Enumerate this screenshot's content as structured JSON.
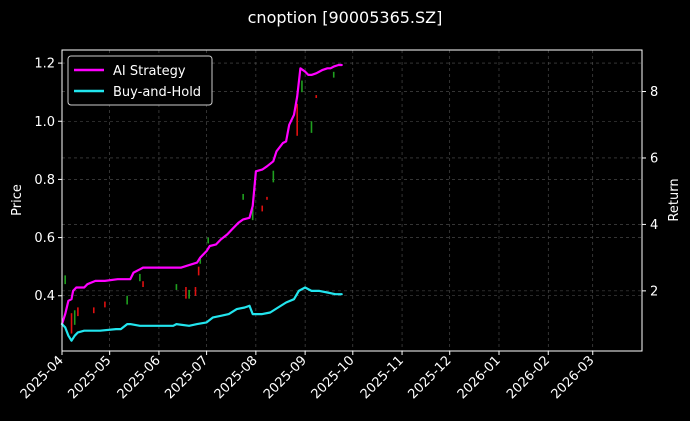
{
  "chart_data": {
    "type": "line",
    "title": "cnoption [90005365.SZ]",
    "ylabel_left": "Price",
    "ylabel_right": "Return",
    "ylim_left": [
      0.21,
      1.245
    ],
    "ylim_right": [
      0.19,
      9.25
    ],
    "yticks_left": [
      "0.4",
      "0.6",
      "0.8",
      "1.0",
      "1.2"
    ],
    "yticks_right": [
      "2",
      "4",
      "6",
      "8"
    ],
    "xlim": [
      "2025-04-01",
      "2026-04-01"
    ],
    "xticks": [
      "2025-04",
      "2025-05",
      "2025-06",
      "2025-07",
      "2025-08",
      "2025-09",
      "2025-10",
      "2025-11",
      "2025-12",
      "2026-01",
      "2026-02",
      "2026-03"
    ],
    "grid": true,
    "legend": "upper-left",
    "colors": {
      "ai": "#ff00ff",
      "bh": "#22e5ee",
      "up": "#1fa01f",
      "down": "#e01010",
      "grid": "#555555",
      "axis": "#ffffff"
    },
    "series": [
      {
        "name": "AI Strategy",
        "axis": "right",
        "x": [
          "2025-04-01",
          "2025-04-03",
          "2025-04-05",
          "2025-04-07",
          "2025-04-08",
          "2025-04-10",
          "2025-04-15",
          "2025-04-17",
          "2025-04-22",
          "2025-04-28",
          "2025-05-06",
          "2025-05-14",
          "2025-05-16",
          "2025-05-20",
          "2025-05-22",
          "2025-05-27",
          "2025-06-05",
          "2025-06-15",
          "2025-06-25",
          "2025-06-27",
          "2025-07-01",
          "2025-07-03",
          "2025-07-07",
          "2025-07-10",
          "2025-07-14",
          "2025-07-17",
          "2025-07-21",
          "2025-07-24",
          "2025-07-28",
          "2025-07-30",
          "2025-08-01",
          "2025-08-05",
          "2025-08-08",
          "2025-08-12",
          "2025-08-14",
          "2025-08-18",
          "2025-08-20",
          "2025-08-22",
          "2025-08-25",
          "2025-08-27",
          "2025-08-29",
          "2025-09-01",
          "2025-09-03",
          "2025-09-05",
          "2025-09-08",
          "2025-09-10",
          "2025-09-12",
          "2025-09-15",
          "2025-09-17",
          "2025-09-19",
          "2025-09-22",
          "2025-09-24"
        ],
        "values": [
          1.0,
          1.3,
          1.7,
          1.75,
          2.0,
          2.1,
          2.1,
          2.2,
          2.3,
          2.3,
          2.35,
          2.35,
          2.55,
          2.65,
          2.7,
          2.7,
          2.7,
          2.7,
          2.85,
          3.0,
          3.2,
          3.35,
          3.4,
          3.55,
          3.7,
          3.85,
          4.05,
          4.15,
          4.2,
          4.55,
          5.6,
          5.65,
          5.75,
          5.9,
          6.2,
          6.45,
          6.5,
          7.0,
          7.3,
          7.85,
          8.7,
          8.6,
          8.5,
          8.5,
          8.55,
          8.6,
          8.65,
          8.7,
          8.7,
          8.75,
          8.8,
          8.8
        ]
      },
      {
        "name": "Buy-and-Hold",
        "axis": "right",
        "x": [
          "2025-04-01",
          "2025-04-03",
          "2025-04-05",
          "2025-04-07",
          "2025-04-09",
          "2025-04-11",
          "2025-04-15",
          "2025-04-25",
          "2025-05-05",
          "2025-05-08",
          "2025-05-12",
          "2025-05-14",
          "2025-05-20",
          "2025-06-05",
          "2025-06-10",
          "2025-06-12",
          "2025-06-20",
          "2025-06-25",
          "2025-07-01",
          "2025-07-05",
          "2025-07-10",
          "2025-07-15",
          "2025-07-20",
          "2025-07-25",
          "2025-07-28",
          "2025-07-30",
          "2025-08-05",
          "2025-08-10",
          "2025-08-15",
          "2025-08-20",
          "2025-08-25",
          "2025-08-28",
          "2025-09-01",
          "2025-09-05",
          "2025-09-10",
          "2025-09-15",
          "2025-09-20",
          "2025-09-24"
        ],
        "values": [
          1.0,
          0.9,
          0.65,
          0.5,
          0.65,
          0.75,
          0.8,
          0.8,
          0.85,
          0.85,
          1.0,
          1.0,
          0.95,
          0.95,
          0.95,
          1.0,
          0.95,
          1.0,
          1.05,
          1.2,
          1.25,
          1.3,
          1.45,
          1.5,
          1.55,
          1.3,
          1.3,
          1.35,
          1.5,
          1.65,
          1.75,
          2.0,
          2.1,
          2.0,
          2.0,
          1.95,
          1.9,
          1.9
        ]
      }
    ],
    "candles": {
      "axis": "left",
      "items": [
        {
          "x": "2025-04-03",
          "low": 0.44,
          "high": 0.47,
          "dir": "up"
        },
        {
          "x": "2025-04-07",
          "low": 0.27,
          "high": 0.34,
          "dir": "down"
        },
        {
          "x": "2025-04-09",
          "low": 0.3,
          "high": 0.35,
          "dir": "up"
        },
        {
          "x": "2025-04-11",
          "low": 0.33,
          "high": 0.36,
          "dir": "down"
        },
        {
          "x": "2025-04-21",
          "low": 0.34,
          "high": 0.36,
          "dir": "down"
        },
        {
          "x": "2025-04-28",
          "low": 0.36,
          "high": 0.38,
          "dir": "down"
        },
        {
          "x": "2025-05-12",
          "low": 0.37,
          "high": 0.4,
          "dir": "up"
        },
        {
          "x": "2025-05-20",
          "low": 0.45,
          "high": 0.475,
          "dir": "up"
        },
        {
          "x": "2025-05-22",
          "low": 0.43,
          "high": 0.45,
          "dir": "down"
        },
        {
          "x": "2025-06-12",
          "low": 0.42,
          "high": 0.44,
          "dir": "up"
        },
        {
          "x": "2025-06-18",
          "low": 0.39,
          "high": 0.43,
          "dir": "down"
        },
        {
          "x": "2025-06-20",
          "low": 0.39,
          "high": 0.42,
          "dir": "up"
        },
        {
          "x": "2025-06-24",
          "low": 0.4,
          "high": 0.43,
          "dir": "down"
        },
        {
          "x": "2025-06-26",
          "low": 0.47,
          "high": 0.5,
          "dir": "down"
        },
        {
          "x": "2025-06-27",
          "low": 0.51,
          "high": 0.53,
          "dir": "up"
        },
        {
          "x": "2025-07-02",
          "low": 0.58,
          "high": 0.6,
          "dir": "up"
        },
        {
          "x": "2025-07-24",
          "low": 0.73,
          "high": 0.75,
          "dir": "up"
        },
        {
          "x": "2025-07-30",
          "low": 0.66,
          "high": 0.7,
          "dir": "up"
        },
        {
          "x": "2025-08-05",
          "low": 0.69,
          "high": 0.71,
          "dir": "down"
        },
        {
          "x": "2025-08-08",
          "low": 0.73,
          "high": 0.74,
          "dir": "down"
        },
        {
          "x": "2025-08-12",
          "low": 0.79,
          "high": 0.83,
          "dir": "up"
        },
        {
          "x": "2025-08-27",
          "low": 0.95,
          "high": 1.06,
          "dir": "down"
        },
        {
          "x": "2025-08-30",
          "low": 1.1,
          "high": 1.14,
          "dir": "up"
        },
        {
          "x": "2025-09-05",
          "low": 0.96,
          "high": 1.0,
          "dir": "up"
        },
        {
          "x": "2025-09-08",
          "low": 1.08,
          "high": 1.09,
          "dir": "down"
        },
        {
          "x": "2025-09-19",
          "low": 1.15,
          "high": 1.17,
          "dir": "up"
        }
      ]
    }
  }
}
